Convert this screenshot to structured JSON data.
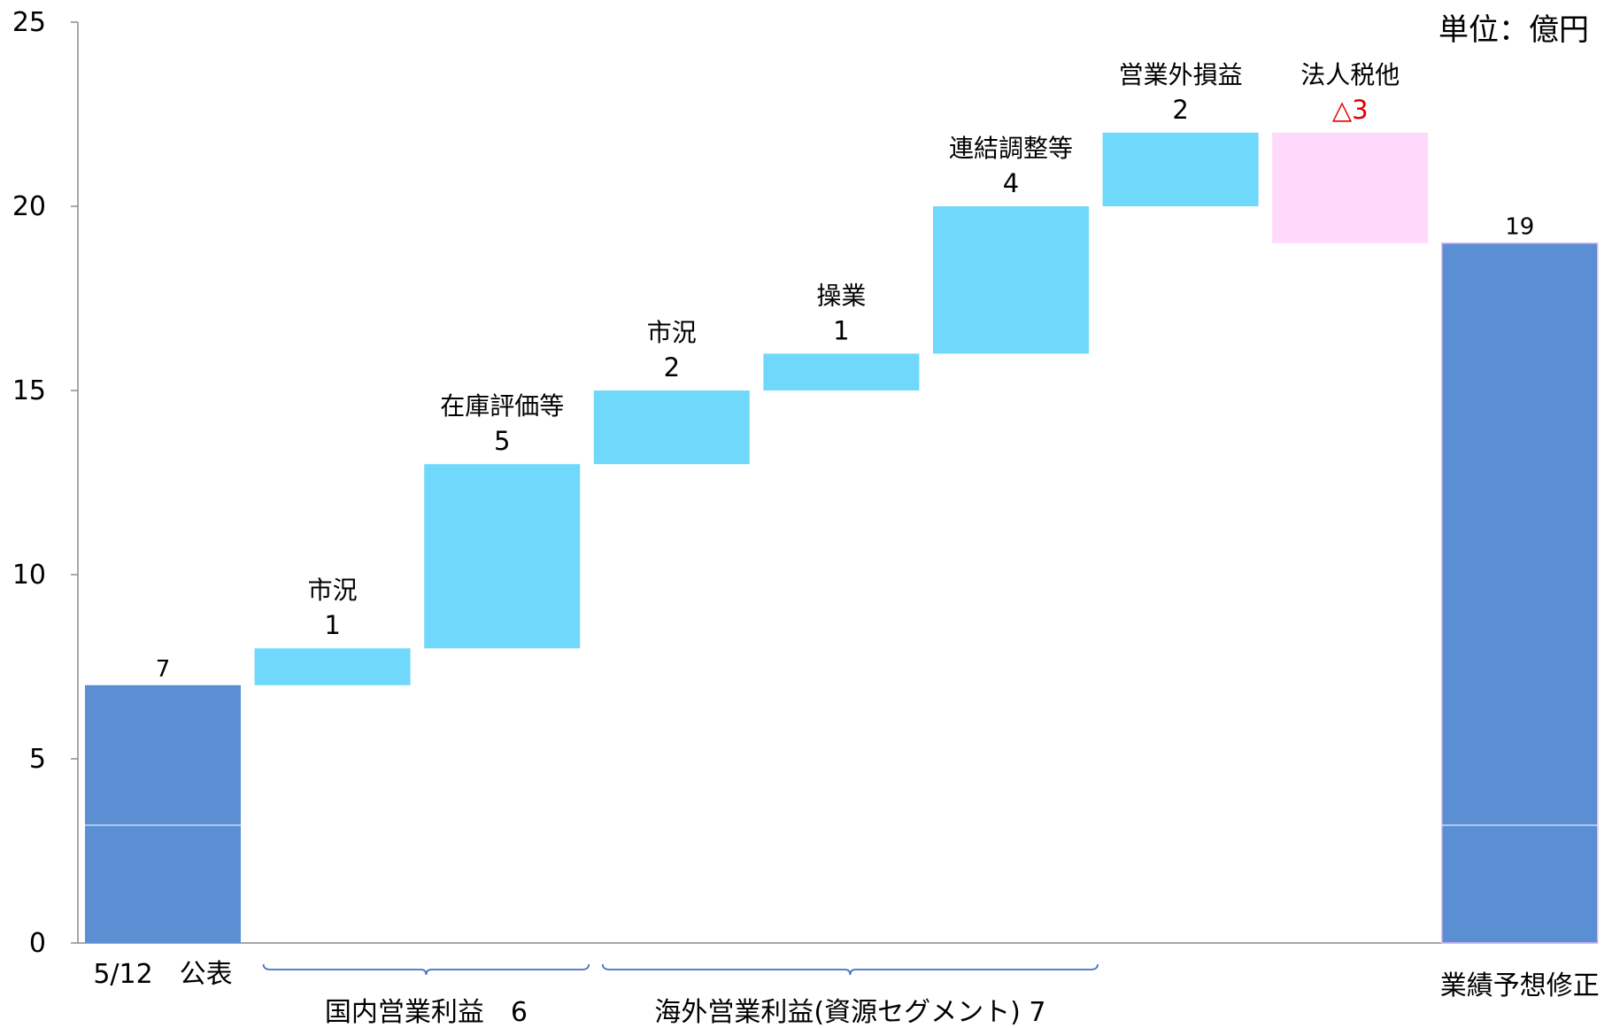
{
  "chart_data": {
    "type": "bar",
    "subtype": "waterfall",
    "unit_label": "単位：億円",
    "ylim": [
      0,
      25
    ],
    "y_ticks": [
      "0",
      "5",
      "10",
      "15",
      "20",
      "25"
    ],
    "grid": false,
    "steps": [
      {
        "kind": "total",
        "label": "",
        "value_label": "7",
        "start": 0,
        "end": 7,
        "color": "#5b8fd4"
      },
      {
        "kind": "delta",
        "label": "市況",
        "value_label": "1",
        "start": 7,
        "end": 8,
        "color": "#6fd8fb"
      },
      {
        "kind": "delta",
        "label": "在庫評価等",
        "value_label": "5",
        "start": 8,
        "end": 13,
        "color": "#6fd8fb"
      },
      {
        "kind": "delta",
        "label": "市況",
        "value_label": "2",
        "start": 13,
        "end": 15,
        "color": "#6fd8fb"
      },
      {
        "kind": "delta",
        "label": "操業",
        "value_label": "1",
        "start": 15,
        "end": 16,
        "color": "#6fd8fb"
      },
      {
        "kind": "delta",
        "label": "連結調整等",
        "value_label": "4",
        "start": 16,
        "end": 20,
        "color": "#6fd8fb"
      },
      {
        "kind": "delta",
        "label": "営業外損益",
        "value_label": "2",
        "start": 20,
        "end": 22,
        "color": "#6fd8fb"
      },
      {
        "kind": "delta",
        "label": "法人税他",
        "value_label": "△3",
        "start": 22,
        "end": 19,
        "color": "#ffd9fb",
        "value_color": "#e00000"
      },
      {
        "kind": "total",
        "label": "",
        "value_label": "19",
        "start": 0,
        "end": 19,
        "color": "#5b8fd4"
      }
    ],
    "x_labels": [
      {
        "index": 0,
        "text": "5/12　公表"
      },
      {
        "index": 8,
        "text": "業績予想修正"
      }
    ],
    "groups": [
      {
        "from": 1,
        "to": 2,
        "label": "国内営業利益　6"
      },
      {
        "from": 3,
        "to": 5,
        "label": "海外営業利益(資源セグメント) 7"
      }
    ]
  }
}
